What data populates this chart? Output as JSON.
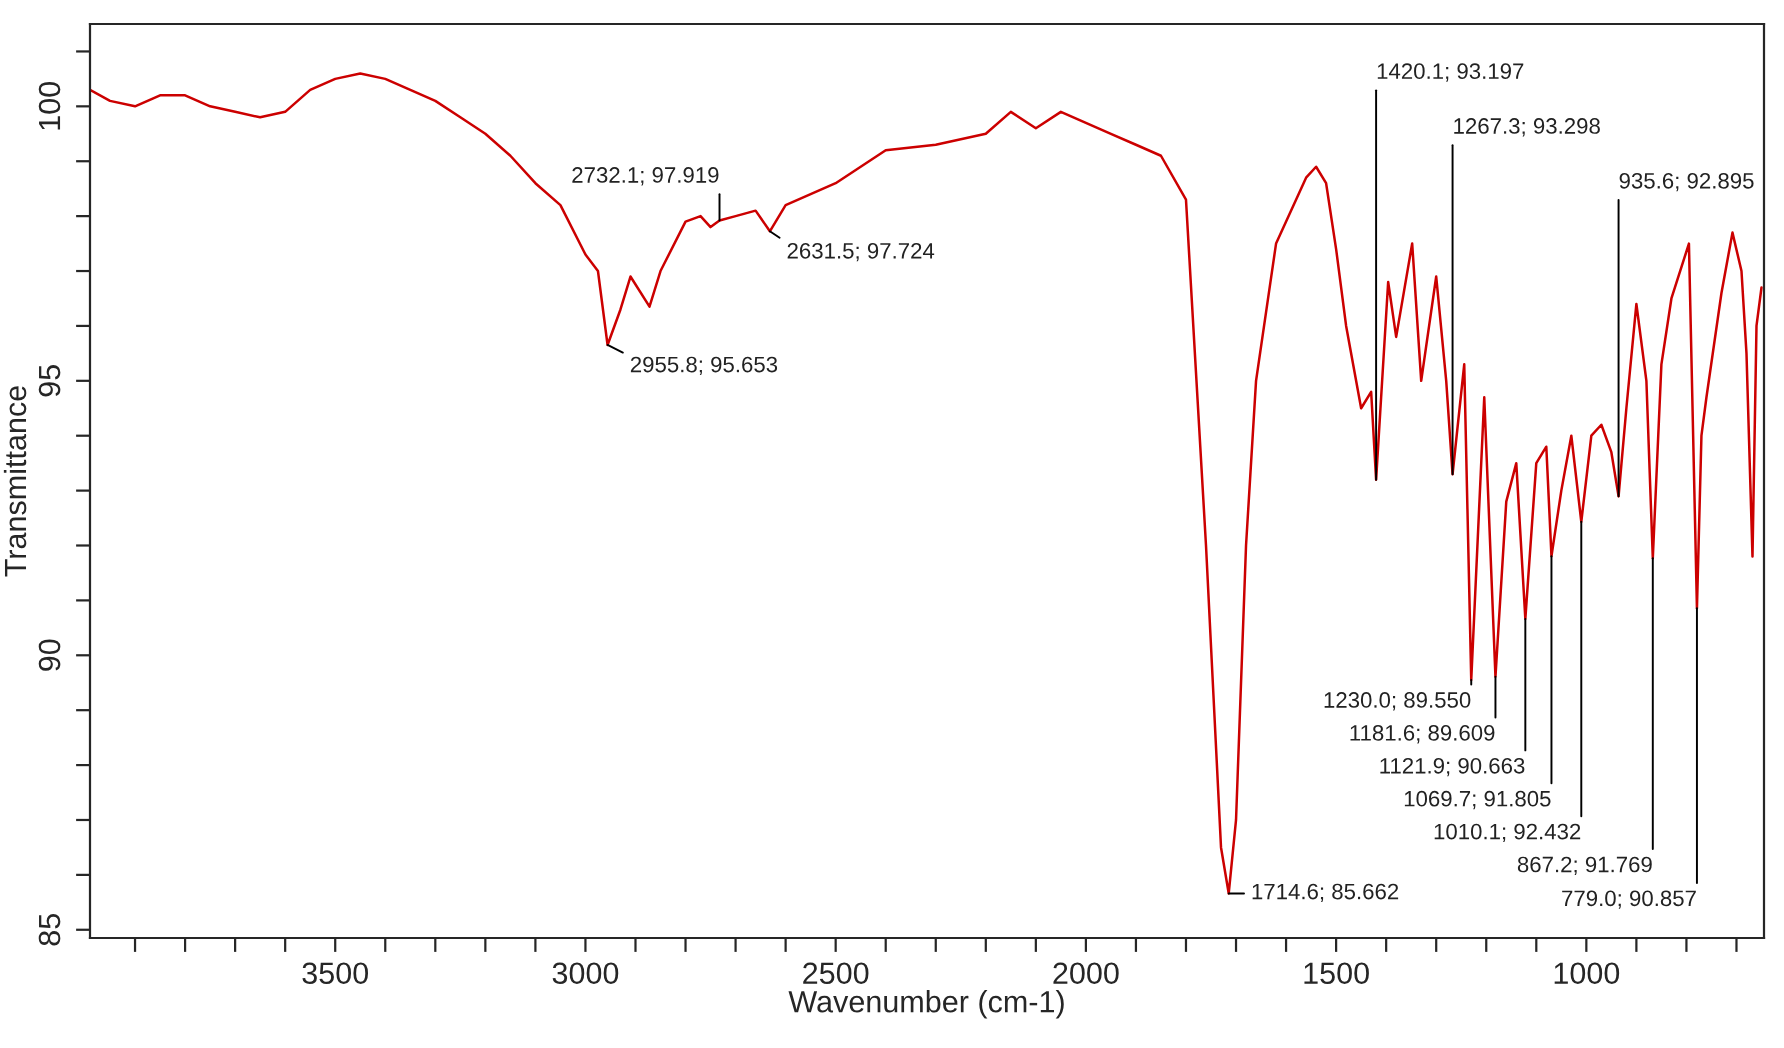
{
  "chart_data": {
    "type": "line",
    "xlabel": "Wavenumber (cm-1)",
    "ylabel": "Transmittance",
    "x": [
      3990,
      3950,
      3900,
      3850,
      3800,
      3750,
      3700,
      3650,
      3600,
      3550,
      3500,
      3450,
      3400,
      3350,
      3300,
      3250,
      3200,
      3150,
      3100,
      3050,
      3000,
      2975,
      2955.8,
      2930,
      2910,
      2872,
      2850,
      2800,
      2770,
      2750,
      2732.1,
      2700,
      2660,
      2631.5,
      2600,
      2550,
      2500,
      2450,
      2400,
      2300,
      2200,
      2150,
      2100,
      2050,
      2000,
      1950,
      1900,
      1850,
      1800,
      1760,
      1730,
      1714.6,
      1700,
      1680,
      1660,
      1620,
      1560,
      1540,
      1520,
      1500,
      1480,
      1450,
      1430,
      1420.1,
      1396,
      1380,
      1348,
      1330,
      1300,
      1280,
      1267.3,
      1244,
      1230.0,
      1204,
      1181.6,
      1160,
      1140,
      1121.9,
      1100,
      1080,
      1069.7,
      1050,
      1030,
      1010.1,
      990,
      970,
      950,
      935.6,
      920,
      900,
      880,
      867.2,
      850,
      830,
      795,
      779.0,
      770,
      760,
      730,
      708,
      690,
      680,
      668,
      660,
      650
    ],
    "values": [
      100.3,
      100.1,
      100.0,
      100.2,
      100.2,
      100.0,
      99.9,
      99.8,
      99.9,
      100.3,
      100.5,
      100.6,
      100.5,
      100.3,
      100.1,
      99.8,
      99.5,
      99.1,
      98.6,
      98.2,
      97.3,
      97.0,
      95.653,
      96.3,
      96.9,
      96.35,
      97.0,
      97.9,
      98.0,
      97.8,
      97.919,
      98.0,
      98.1,
      97.724,
      98.2,
      98.4,
      98.6,
      98.9,
      99.2,
      99.3,
      99.5,
      99.9,
      99.6,
      99.9,
      99.7,
      99.5,
      99.3,
      99.1,
      98.3,
      92.0,
      86.5,
      85.662,
      87.0,
      92.0,
      95.0,
      97.5,
      98.7,
      98.9,
      98.6,
      97.4,
      96.0,
      94.5,
      94.8,
      93.197,
      96.8,
      95.8,
      97.5,
      95.0,
      96.9,
      95.0,
      93.298,
      95.3,
      89.55,
      94.7,
      89.609,
      92.8,
      93.5,
      90.663,
      93.5,
      93.8,
      91.805,
      93.0,
      94.0,
      92.432,
      94.0,
      94.2,
      93.7,
      92.895,
      94.5,
      96.4,
      95.0,
      91.769,
      95.3,
      96.5,
      97.5,
      90.857,
      94.0,
      94.7,
      96.6,
      97.7,
      97.0,
      95.5,
      91.8,
      96.0,
      96.7
    ],
    "color": "#cc0000",
    "xlim": [
      3990,
      645
    ],
    "ylim": [
      84.85,
      101.5
    ],
    "xticks": [
      {
        "value": 3900,
        "label": null
      },
      {
        "value": 3800,
        "label": null
      },
      {
        "value": 3700,
        "label": null
      },
      {
        "value": 3600,
        "label": null
      },
      3500,
      {
        "value": 3400,
        "label": null
      },
      {
        "value": 3300,
        "label": null
      },
      {
        "value": 3200,
        "label": null
      },
      {
        "value": 3100,
        "label": null
      },
      3000,
      {
        "value": 2900,
        "label": null
      },
      {
        "value": 2800,
        "label": null
      },
      {
        "value": 2700,
        "label": null
      },
      {
        "value": 2600,
        "label": null
      },
      2500,
      {
        "value": 2400,
        "label": null
      },
      {
        "value": 2300,
        "label": null
      },
      {
        "value": 2200,
        "label": null
      },
      {
        "value": 2100,
        "label": null
      },
      2000,
      {
        "value": 1900,
        "label": null
      },
      {
        "value": 1800,
        "label": null
      },
      {
        "value": 1700,
        "label": null
      },
      {
        "value": 1600,
        "label": null
      },
      1500,
      {
        "value": 1400,
        "label": null
      },
      {
        "value": 1300,
        "label": null
      },
      {
        "value": 1200,
        "label": null
      },
      {
        "value": 1100,
        "label": null
      },
      1000,
      {
        "value": 900,
        "label": null
      },
      {
        "value": 800,
        "label": null
      },
      {
        "value": 700,
        "label": null
      }
    ],
    "yticks": [
      85,
      {
        "value": 86,
        "label": null
      },
      {
        "value": 87,
        "label": null
      },
      {
        "value": 88,
        "label": null
      },
      {
        "value": 89,
        "label": null
      },
      90,
      {
        "value": 91,
        "label": null
      },
      {
        "value": 92,
        "label": null
      },
      {
        "value": 93,
        "label": null
      },
      {
        "value": 94,
        "label": null
      },
      95,
      {
        "value": 96,
        "label": null
      },
      {
        "value": 97,
        "label": null
      },
      {
        "value": 98,
        "label": null
      },
      {
        "value": 99,
        "label": null
      },
      100,
      {
        "value": 101,
        "label": null
      }
    ],
    "grid": false,
    "annotations": [
      {
        "text": "2955.8; 95.653",
        "x": 2955.8,
        "y": 95.653
      },
      {
        "text": "2732.1; 97.919",
        "x": 2732.1,
        "y": 97.919
      },
      {
        "text": "2631.5; 97.724",
        "x": 2631.5,
        "y": 97.724
      },
      {
        "text": "1714.6; 85.662",
        "x": 1714.6,
        "y": 85.662
      },
      {
        "text": "1420.1; 93.197",
        "x": 1420.1,
        "y": 93.197
      },
      {
        "text": "1267.3; 93.298",
        "x": 1267.3,
        "y": 93.298
      },
      {
        "text": "1230.0; 89.550",
        "x": 1230.0,
        "y": 89.55
      },
      {
        "text": "1181.6; 89.609",
        "x": 1181.6,
        "y": 89.609
      },
      {
        "text": "1121.9; 90.663",
        "x": 1121.9,
        "y": 90.663
      },
      {
        "text": "1069.7; 91.805",
        "x": 1069.7,
        "y": 91.805
      },
      {
        "text": "1010.1; 92.432",
        "x": 1010.1,
        "y": 92.432
      },
      {
        "text": "935.6; 92.895",
        "x": 935.6,
        "y": 92.895
      },
      {
        "text": "867.2; 91.769",
        "x": 867.2,
        "y": 91.769
      },
      {
        "text": "779.0; 90.857",
        "x": 779.0,
        "y": 90.857
      }
    ]
  }
}
